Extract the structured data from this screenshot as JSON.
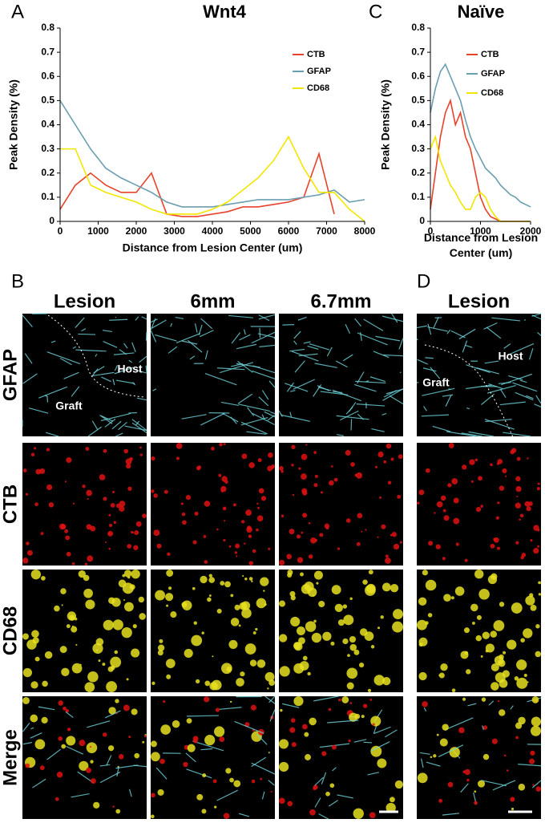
{
  "panel_labels": [
    "A",
    "B",
    "C",
    "D"
  ],
  "chart_data": [
    {
      "type": "line",
      "title": "Wnt4",
      "xlabel": "Distance from Lesion Center (um)",
      "ylabel": "Peak Density (%)",
      "x": [
        0,
        400,
        800,
        1200,
        1600,
        2000,
        2400,
        2800,
        3200,
        3600,
        4000,
        4400,
        4800,
        5200,
        5600,
        6000,
        6400,
        6800,
        7200,
        7600,
        8000
      ],
      "xlim": [
        0,
        8000
      ],
      "xticks": [
        0,
        1000,
        2000,
        3000,
        4000,
        5000,
        6000,
        7000,
        8000
      ],
      "ylim": [
        0,
        0.8
      ],
      "yticks": [
        0,
        0.1,
        0.2,
        0.3,
        0.4,
        0.5,
        0.6,
        0.7,
        0.8
      ],
      "legend": "upper right",
      "series": [
        {
          "name": "CTB",
          "color": "#e8432a",
          "values": [
            0.05,
            0.15,
            0.2,
            0.15,
            0.12,
            0.12,
            0.2,
            0.03,
            0.02,
            0.02,
            0.03,
            0.04,
            0.06,
            0.06,
            0.07,
            0.08,
            0.1,
            0.28,
            0.03,
            null,
            null
          ]
        },
        {
          "name": "GFAP",
          "color": "#6a9fb0",
          "values": [
            0.5,
            0.4,
            0.3,
            0.22,
            0.18,
            0.15,
            0.12,
            0.08,
            0.06,
            0.06,
            0.06,
            0.07,
            0.08,
            0.09,
            0.09,
            0.09,
            0.1,
            0.11,
            0.13,
            0.08,
            0.09
          ]
        },
        {
          "name": "CD68",
          "color": "#f2e600",
          "values": [
            0.3,
            0.3,
            0.15,
            0.12,
            0.1,
            0.08,
            0.05,
            0.03,
            0.03,
            0.03,
            0.05,
            0.08,
            0.13,
            0.18,
            0.25,
            0.35,
            0.22,
            0.12,
            0.12,
            0.05,
            0
          ]
        }
      ]
    },
    {
      "type": "line",
      "title": "Naïve",
      "xlabel": "Distance from Lesion Center (um)",
      "ylabel": "Peak Density (%)",
      "x": [
        0,
        100,
        200,
        300,
        400,
        500,
        600,
        700,
        800,
        900,
        1000,
        1100,
        1200,
        1300,
        1400,
        1500,
        1600,
        1700,
        1800,
        1900,
        2000
      ],
      "xlim": [
        0,
        2000
      ],
      "xticks": [
        0,
        1000,
        2000
      ],
      "ylim": [
        0,
        0.8
      ],
      "yticks": [
        0,
        0.1,
        0.2,
        0.3,
        0.4,
        0.5,
        0.6,
        0.7,
        0.8
      ],
      "legend": "upper right",
      "series": [
        {
          "name": "CTB",
          "color": "#e8432a",
          "values": [
            0.05,
            0.2,
            0.35,
            0.45,
            0.5,
            0.4,
            0.45,
            0.35,
            0.3,
            0.2,
            0.1,
            0.05,
            0.02,
            0.01,
            0,
            0,
            0,
            0,
            0,
            0,
            0
          ]
        },
        {
          "name": "GFAP",
          "color": "#6a9fb0",
          "values": [
            0.45,
            0.55,
            0.62,
            0.65,
            0.6,
            0.55,
            0.5,
            0.42,
            0.35,
            0.3,
            0.26,
            0.22,
            0.2,
            0.18,
            0.15,
            0.13,
            0.11,
            0.1,
            0.08,
            0.07,
            0.06
          ]
        },
        {
          "name": "CD68",
          "color": "#f2e600",
          "values": [
            0.3,
            0.35,
            0.25,
            0.2,
            0.15,
            0.12,
            0.08,
            0.05,
            0.05,
            0.1,
            0.12,
            0.1,
            0.05,
            0.02,
            0,
            0,
            0,
            0,
            0,
            0,
            0
          ]
        }
      ]
    }
  ],
  "micrographs": {
    "columns": [
      "Lesion",
      "6mm",
      "6.7mm",
      "Lesion"
    ],
    "rows": [
      "GFAP",
      "CTB",
      "CD68",
      "Merge"
    ],
    "annotations": [
      "Host",
      "Graft",
      "Host",
      "Graft"
    ]
  }
}
